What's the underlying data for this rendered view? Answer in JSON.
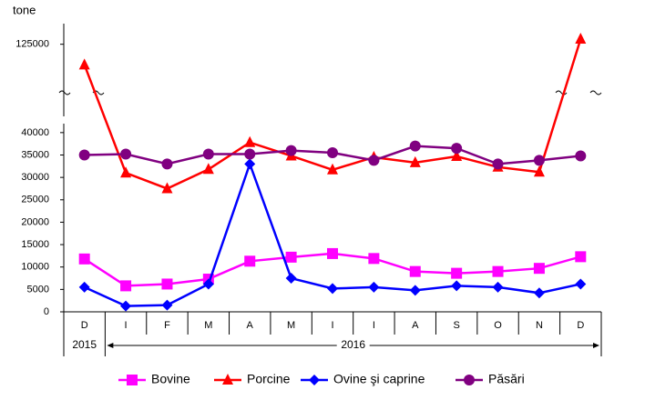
{
  "chart_data": {
    "type": "line",
    "y_label": "tone",
    "categories": [
      "D",
      "I",
      "F",
      "M",
      "A",
      "M",
      "I",
      "I",
      "A",
      "S",
      "O",
      "N",
      "D"
    ],
    "year_groups": [
      {
        "label": "2015",
        "categories": 1
      },
      {
        "label": "2016",
        "categories": 12
      }
    ],
    "ylim": [
      0,
      127000
    ],
    "axis_break": [
      42000,
      118000
    ],
    "yticks": [
      0,
      5000,
      10000,
      15000,
      20000,
      25000,
      30000,
      35000,
      40000,
      125000
    ],
    "grid": false,
    "legend": "bottom",
    "series": [
      {
        "name": "Bovine",
        "color": "#ff00ff",
        "marker": "square",
        "values": [
          11800,
          5800,
          6200,
          7300,
          11300,
          12200,
          13000,
          11900,
          9000,
          8600,
          9000,
          9700,
          12300
        ]
      },
      {
        "name": "Porcine",
        "color": "#ff0000",
        "marker": "triangle",
        "values": [
          123000,
          31000,
          27500,
          31800,
          37800,
          34800,
          31700,
          34500,
          33300,
          34700,
          32300,
          31200,
          125500
        ]
      },
      {
        "name": "Ovine şi caprine",
        "color": "#0000ff",
        "marker": "diamond",
        "values": [
          5500,
          1300,
          1500,
          6200,
          33000,
          7500,
          5200,
          5500,
          4800,
          5800,
          5500,
          4200,
          6200
        ]
      },
      {
        "name": "Păsări",
        "color": "#800080",
        "marker": "circle",
        "values": [
          35000,
          35200,
          33000,
          35200,
          35200,
          36000,
          35500,
          33800,
          37000,
          36500,
          33000,
          33800,
          34800
        ]
      }
    ]
  }
}
